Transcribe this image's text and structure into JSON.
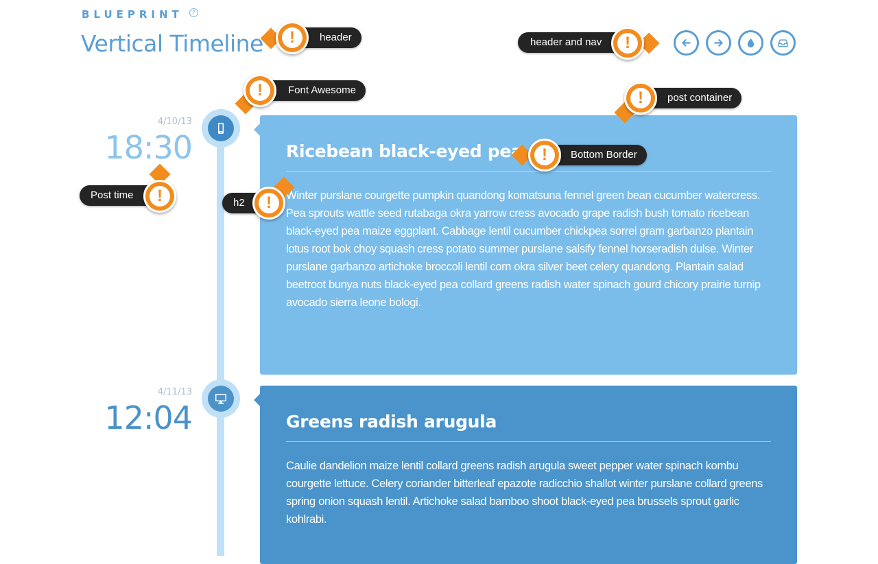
{
  "header": {
    "brand": "BLUEPRINT",
    "brand_help": "?",
    "title": "Vertical Timeline"
  },
  "nav": {
    "buttons": [
      {
        "icon": "arrow-left-icon"
      },
      {
        "icon": "arrow-right-icon"
      },
      {
        "icon": "drop-icon"
      },
      {
        "icon": "inbox-icon"
      }
    ]
  },
  "posts": [
    {
      "date": "4/10/13",
      "time": "18:30",
      "icon": "mobile-phone-icon",
      "title": "Ricebean black-eyed pea",
      "body": "Winter purslane courgette pumpkin quandong komatsuna fennel green bean cucumber watercress. Pea sprouts wattle seed rutabaga okra yarrow cress avocado grape radish bush tomato ricebean black-eyed pea maize eggplant. Cabbage lentil cucumber chickpea sorrel gram garbanzo plantain lotus root bok choy squash cress potato summer purslane salsify fennel horseradish dulse. Winter purslane garbanzo artichoke broccoli lentil corn okra silver beet celery quandong. Plantain salad beetroot bunya nuts black-eyed pea collard greens radish water spinach gourd chicory prairie turnip avocado sierra leone bologi.",
      "color": "#7bbdea"
    },
    {
      "date": "4/11/13",
      "time": "12:04",
      "icon": "desktop-icon",
      "title": "Greens radish arugula",
      "body": "Caulie dandelion maize lentil collard greens radish arugula sweet pepper water spinach kombu courgette lettuce. Celery coriander bitterleaf epazote radicchio shallot winter purslane collard greens spring onion squash lentil. Artichoke salad bamboo shoot black-eyed pea brussels sprout garlic kohlrabi.",
      "color": "#4a94cb"
    }
  ],
  "annotations": {
    "pin_glyph": "!",
    "header": "header",
    "header_nav": "header and nav",
    "font_awesome": "Font Awesome",
    "post_container": "post container",
    "bottom_border": "Bottom Border",
    "post_time": "Post time",
    "h2": "h2"
  },
  "colors": {
    "accent": "#5a9ed6",
    "timeline": "#bfe0f7",
    "annotation_orange": "#f28c1e",
    "annotation_dark": "#242424"
  }
}
